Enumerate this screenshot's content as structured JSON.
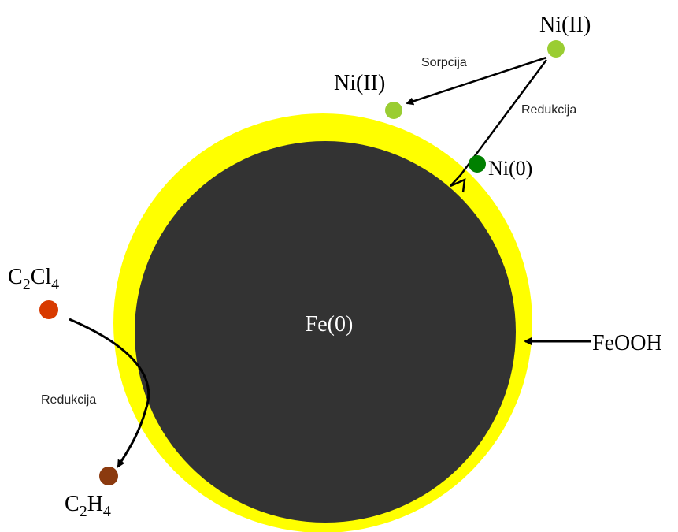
{
  "particle": {
    "core": "Fe(0)",
    "shell": "FeOOH"
  },
  "nickel": {
    "solution": "Ni(II)",
    "sorbed": "Ni(II)",
    "reduced": "Ni(0)",
    "sorption": "Sorpcija",
    "reduction": "Redukcija"
  },
  "chlorinated": {
    "reactant": [
      "C",
      "2",
      "Cl",
      "4"
    ],
    "product": [
      "C",
      "2",
      "H",
      "4"
    ],
    "reduction": "Redukcija"
  }
}
